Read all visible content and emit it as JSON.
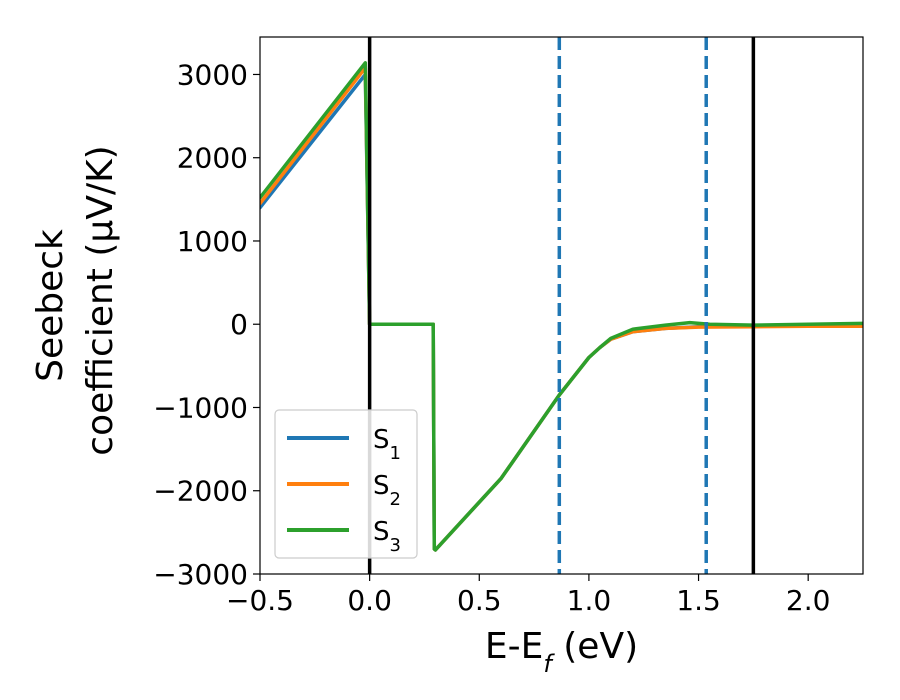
{
  "chart_data": {
    "type": "line",
    "xlabel": {
      "main": "E-E",
      "sub": "f",
      "rest": " (eV)"
    },
    "ylabel": {
      "line1": "Seebeck",
      "line2": "coefficient  (μV/K)"
    },
    "xlim": [
      -0.5,
      2.25
    ],
    "ylim": [
      -3000,
      3450
    ],
    "xticks": [
      {
        "value": -0.5,
        "label": "−0.5"
      },
      {
        "value": 0.0,
        "label": "0.0"
      },
      {
        "value": 0.5,
        "label": "0.5"
      },
      {
        "value": 1.0,
        "label": "1.0"
      },
      {
        "value": 1.5,
        "label": "1.5"
      },
      {
        "value": 2.0,
        "label": "2.0"
      }
    ],
    "yticks": [
      {
        "value": -3000,
        "label": "−3000"
      },
      {
        "value": -2000,
        "label": "−2000"
      },
      {
        "value": -1000,
        "label": "−1000"
      },
      {
        "value": 0,
        "label": "0"
      },
      {
        "value": 1000,
        "label": "1000"
      },
      {
        "value": 2000,
        "label": "2000"
      },
      {
        "value": 3000,
        "label": "3000"
      }
    ],
    "grid": false,
    "legend_position": "lower-left",
    "vlines": [
      {
        "x": 0.0,
        "style": "solid",
        "color": "#000000"
      },
      {
        "x": 1.75,
        "style": "solid",
        "color": "#000000"
      },
      {
        "x": 0.865,
        "style": "dashed",
        "color": "#1f77b4"
      },
      {
        "x": 1.535,
        "style": "dashed",
        "color": "#1f77b4"
      }
    ],
    "series": [
      {
        "name": {
          "main": "S",
          "sub": "1"
        },
        "color": "#1f77b4",
        "points": [
          [
            -0.5,
            1400
          ],
          [
            -0.02,
            3000
          ],
          [
            0.0,
            0
          ],
          [
            0.29,
            0
          ],
          [
            0.295,
            -2700
          ],
          [
            0.3,
            -2710
          ],
          [
            0.6,
            -1850
          ],
          [
            0.865,
            -850
          ],
          [
            1.0,
            -400
          ],
          [
            1.05,
            -280
          ],
          [
            1.1,
            -180
          ],
          [
            1.2,
            -90
          ],
          [
            1.35,
            -50
          ],
          [
            1.5,
            -30
          ],
          [
            1.75,
            -20
          ],
          [
            2.0,
            -15
          ],
          [
            2.25,
            -10
          ]
        ]
      },
      {
        "name": {
          "main": "S",
          "sub": "2"
        },
        "color": "#ff7f0e",
        "points": [
          [
            -0.5,
            1450
          ],
          [
            -0.02,
            3080
          ],
          [
            0.0,
            0
          ],
          [
            0.29,
            0
          ],
          [
            0.295,
            -2700
          ],
          [
            0.3,
            -2710
          ],
          [
            0.6,
            -1850
          ],
          [
            0.865,
            -850
          ],
          [
            1.0,
            -400
          ],
          [
            1.05,
            -280
          ],
          [
            1.1,
            -180
          ],
          [
            1.2,
            -90
          ],
          [
            1.35,
            -50
          ],
          [
            1.5,
            -35
          ],
          [
            1.75,
            -30
          ],
          [
            2.0,
            -25
          ],
          [
            2.25,
            -25
          ]
        ]
      },
      {
        "name": {
          "main": "S",
          "sub": "3"
        },
        "color": "#2ca02c",
        "points": [
          [
            -0.5,
            1520
          ],
          [
            -0.02,
            3140
          ],
          [
            0.0,
            0
          ],
          [
            0.29,
            0
          ],
          [
            0.295,
            -2700
          ],
          [
            0.3,
            -2710
          ],
          [
            0.6,
            -1850
          ],
          [
            0.865,
            -850
          ],
          [
            1.0,
            -400
          ],
          [
            1.05,
            -280
          ],
          [
            1.1,
            -170
          ],
          [
            1.2,
            -60
          ],
          [
            1.35,
            -10
          ],
          [
            1.46,
            20
          ],
          [
            1.55,
            0
          ],
          [
            1.75,
            -10
          ],
          [
            2.0,
            0
          ],
          [
            2.25,
            10
          ]
        ]
      }
    ]
  }
}
